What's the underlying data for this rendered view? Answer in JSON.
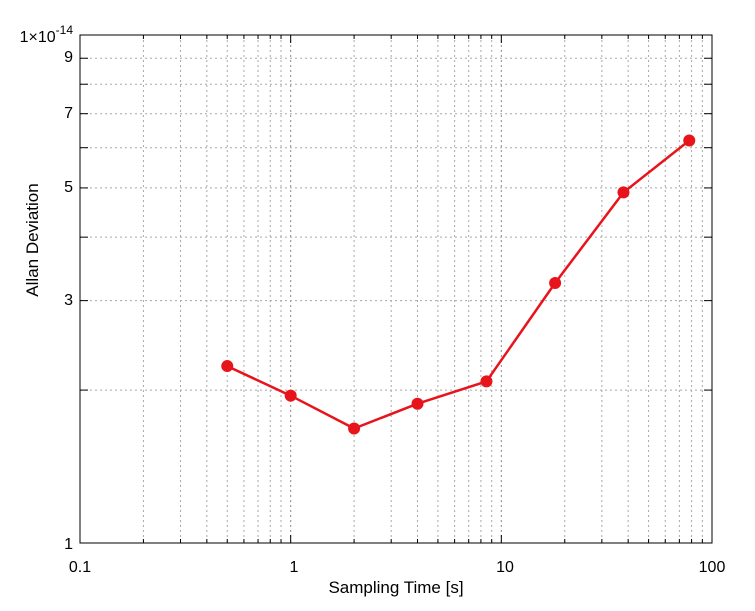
{
  "chart_data": {
    "type": "line",
    "xlabel": "Sampling Time [s]",
    "ylabel": "Allan Deviation",
    "x_scale": "log",
    "y_scale": "log",
    "xlim": [
      0.1,
      100
    ],
    "ylim": [
      1e-14,
      1e-13
    ],
    "grid": true,
    "x_tick_labels": [
      "0.1",
      "1",
      "10",
      "100"
    ],
    "y_tick_labels": [
      "1",
      "3",
      "5",
      "7",
      "9"
    ],
    "y_top_label": {
      "mantissa": "1",
      "base": "×10",
      "exponent": "-14"
    },
    "series": [
      {
        "color": "#e8141c",
        "marker": "circle",
        "x": [
          0.5,
          1,
          2,
          4,
          8.5,
          18,
          38,
          78
        ],
        "y": [
          2.23e-14,
          1.95e-14,
          1.68e-14,
          1.88e-14,
          2.08e-14,
          3.25e-14,
          4.9e-14,
          6.2e-14
        ]
      }
    ]
  }
}
